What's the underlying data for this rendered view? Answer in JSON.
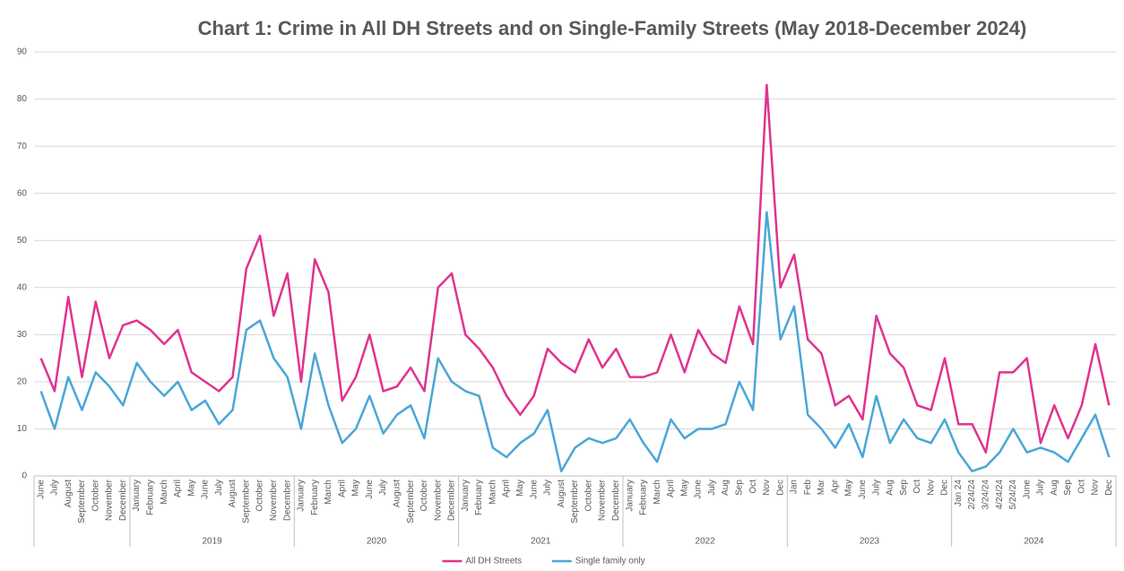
{
  "chart_data": {
    "type": "line",
    "title": "Chart 1: Crime in All DH Streets and on Single-Family Streets (May 2018-December 2024)",
    "categories": [
      "June",
      "July",
      "August",
      "September",
      "October",
      "November",
      "December",
      "January",
      "February",
      "March",
      "April",
      "May",
      "June",
      "July",
      "August",
      "September",
      "October",
      "November",
      "December",
      "January",
      "February",
      "March",
      "April",
      "May",
      "June",
      "July",
      "August",
      "September",
      "October",
      "November",
      "December",
      "January",
      "February",
      "March",
      "April",
      "May",
      "June",
      "July",
      "August",
      "September",
      "October",
      "November",
      "December",
      "January",
      "February",
      "March",
      "April",
      "May",
      "June",
      "July",
      "Aug",
      "Sep",
      "Oct",
      "Nov",
      "Dec",
      "Jan",
      "Feb",
      "Mar",
      "Apr",
      "May",
      "June",
      "July",
      "Aug",
      "Sep",
      "Oct",
      "Nov",
      "Dec",
      "Jan 24",
      "2/24/24",
      "3/24/24",
      "4/24/24",
      "5/24/24",
      "June",
      "July",
      "Aug",
      "Sep",
      "Oct",
      "Nov",
      "Dec"
    ],
    "groups": [
      null,
      "2019",
      "2020",
      "2021",
      "2022",
      "2023",
      "2024"
    ],
    "series": [
      {
        "name": "All DH Streets",
        "color": "#e0338f",
        "values": [
          25,
          18,
          38,
          21,
          37,
          25,
          32,
          33,
          31,
          28,
          31,
          22,
          20,
          18,
          21,
          44,
          51,
          34,
          43,
          20,
          46,
          39,
          16,
          21,
          30,
          18,
          19,
          23,
          18,
          40,
          43,
          30,
          27,
          23,
          17,
          13,
          17,
          27,
          24,
          22,
          29,
          23,
          27,
          21,
          21,
          22,
          30,
          22,
          31,
          26,
          24,
          36,
          28,
          83,
          40,
          47,
          29,
          26,
          15,
          17,
          12,
          34,
          26,
          23,
          15,
          14,
          25,
          11,
          11,
          5,
          22,
          22,
          25,
          7,
          15,
          8,
          15,
          28,
          15
        ]
      },
      {
        "name": "Single family only",
        "color": "#4aa6d8",
        "values": [
          18,
          10,
          21,
          14,
          22,
          19,
          15,
          24,
          20,
          17,
          20,
          14,
          16,
          11,
          14,
          31,
          33,
          25,
          21,
          10,
          26,
          15,
          7,
          10,
          17,
          9,
          13,
          15,
          8,
          25,
          20,
          18,
          17,
          6,
          4,
          7,
          9,
          14,
          1,
          6,
          8,
          7,
          8,
          12,
          7,
          3,
          12,
          8,
          10,
          10,
          11,
          20,
          14,
          56,
          29,
          36,
          13,
          10,
          6,
          11,
          4,
          17,
          7,
          12,
          8,
          7,
          12,
          5,
          1,
          2,
          5,
          10,
          5,
          6,
          5,
          3,
          8,
          13,
          4
        ]
      }
    ],
    "ylim": [
      0,
      90
    ],
    "yticks": [
      0,
      10,
      20,
      30,
      40,
      50,
      60,
      70,
      80,
      90
    ],
    "grid": true,
    "legend": "bottom"
  }
}
